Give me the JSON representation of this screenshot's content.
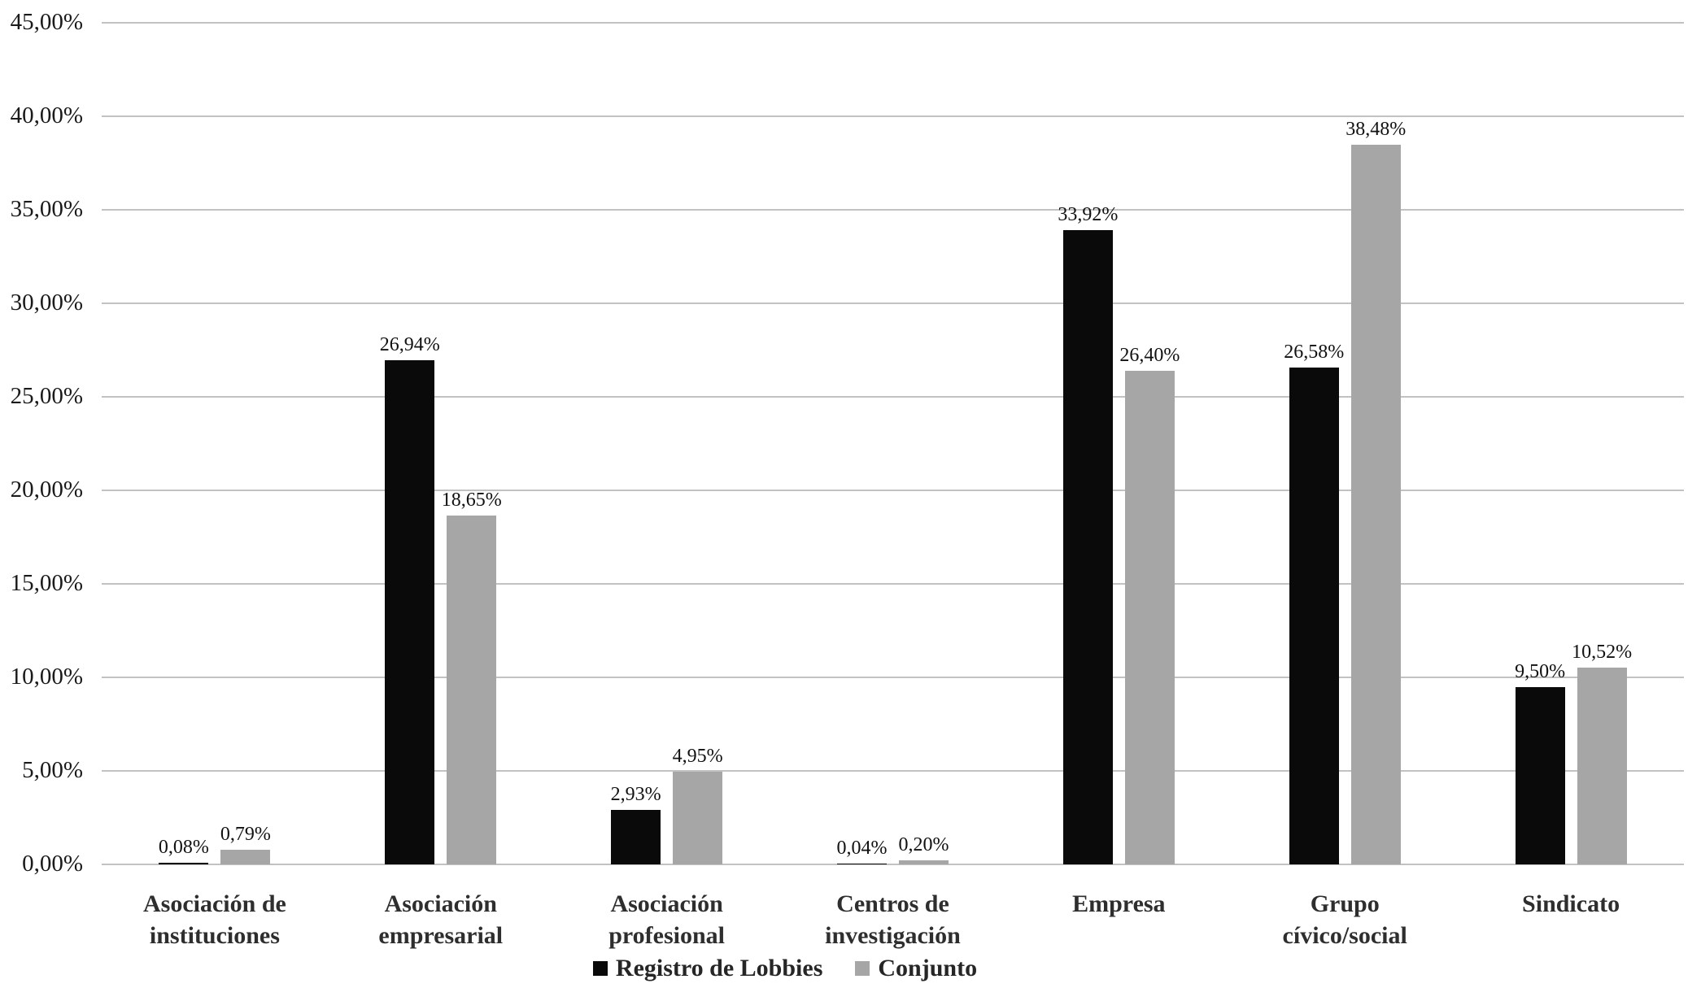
{
  "chart_data": {
    "type": "bar",
    "title": "",
    "xlabel": "",
    "ylabel": "",
    "categories": [
      "Asociación de\ninstituciones",
      "Asociación\nempresarial",
      "Asociación\nprofesional",
      "Centros de\ninvestigación",
      "Empresa",
      "Grupo\ncívico/social",
      "Sindicato"
    ],
    "series": [
      {
        "name": "Registro de Lobbies",
        "color": "#0a0a0a",
        "values": [
          0.08,
          26.94,
          2.93,
          0.04,
          33.92,
          26.58,
          9.5
        ],
        "labels": [
          "0,08%",
          "26,94%",
          "2,93%",
          "0,04%",
          "33,92%",
          "26,58%",
          "9,50%"
        ]
      },
      {
        "name": "Conjunto",
        "color": "#a6a6a6",
        "values": [
          0.79,
          18.65,
          4.95,
          0.2,
          26.4,
          38.48,
          10.52
        ],
        "labels": [
          "0,79%",
          "18,65%",
          "4,95%",
          "0,20%",
          "26,40%",
          "38,48%",
          "10,52%"
        ]
      }
    ],
    "y_axis": {
      "min": 0,
      "max": 45,
      "step": 5,
      "tick_labels_top_to_bottom": [
        "45,00%",
        "40,00%",
        "35,00%",
        "30,00%",
        "25,00%",
        "20,00%",
        "15,00%",
        "10,00%",
        "5,00%",
        "0,00%"
      ]
    },
    "grid": true,
    "legend_position": "bottom",
    "gridline_color": "#c2c2c2"
  }
}
